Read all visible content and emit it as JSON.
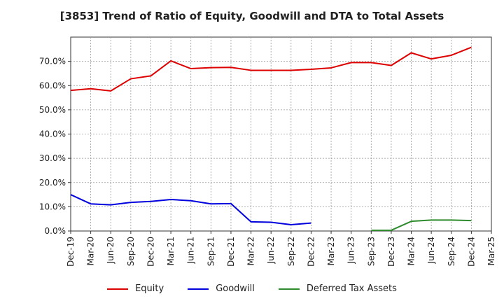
{
  "chart_data": {
    "type": "line",
    "title": "[3853]  Trend of Ratio of Equity, Goodwill and DTA to Total Assets",
    "xlabel": "",
    "ylabel": "",
    "ylim": [
      0,
      80
    ],
    "y_ticks": [
      "0.0%",
      "10.0%",
      "20.0%",
      "30.0%",
      "40.0%",
      "50.0%",
      "60.0%",
      "70.0%"
    ],
    "categories": [
      "Dec-19",
      "Mar-20",
      "Jun-20",
      "Sep-20",
      "Dec-20",
      "Mar-21",
      "Jun-21",
      "Sep-21",
      "Dec-21",
      "Mar-22",
      "Jun-22",
      "Sep-22",
      "Dec-22",
      "Mar-23",
      "Jun-23",
      "Sep-23",
      "Dec-23",
      "Mar-24",
      "Jun-24",
      "Sep-24",
      "Dec-24",
      "Mar-25"
    ],
    "grid": true,
    "legend_position": "bottom",
    "series": [
      {
        "name": "Equity",
        "color": "#dd0000",
        "values": [
          58.0,
          58.7,
          57.8,
          62.8,
          64.0,
          70.2,
          67.0,
          67.4,
          67.5,
          66.3,
          66.3,
          66.3,
          66.7,
          67.3,
          69.5,
          69.5,
          68.3,
          73.5,
          71.0,
          72.5,
          75.8,
          null
        ]
      },
      {
        "name": "Goodwill",
        "color": "#0000dd",
        "values": [
          15.0,
          11.2,
          10.8,
          11.8,
          12.2,
          13.0,
          12.5,
          11.2,
          11.3,
          3.8,
          3.6,
          2.6,
          3.3,
          null,
          null,
          null,
          null,
          null,
          null,
          null,
          null,
          null
        ]
      },
      {
        "name": "Deferred Tax Assets",
        "color": "#2e8b2e",
        "values": [
          null,
          null,
          null,
          null,
          null,
          null,
          null,
          null,
          null,
          null,
          null,
          null,
          null,
          null,
          null,
          0.3,
          0.3,
          4.0,
          4.5,
          4.5,
          4.3,
          null
        ]
      }
    ]
  }
}
